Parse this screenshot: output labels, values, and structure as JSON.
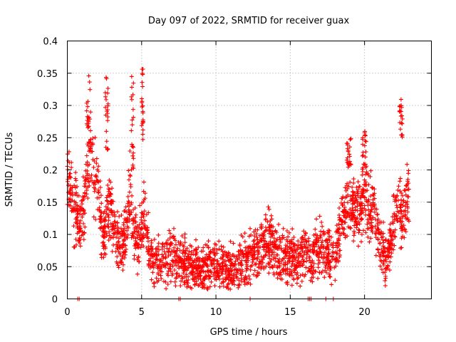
{
  "chart_data": {
    "type": "scatter",
    "title": "Day 097 of 2022, SRMTID for receiver guax",
    "xlabel": "GPS time / hours",
    "ylabel": "SRMTID / TECUs",
    "xlim": [
      0,
      24.5
    ],
    "ylim": [
      0,
      0.4
    ],
    "xticks": [
      0,
      5,
      10,
      15,
      20
    ],
    "xtick_labels": [
      "0",
      "5",
      "10",
      "15",
      "20"
    ],
    "yticks": [
      0,
      0.05,
      0.1,
      0.15,
      0.2,
      0.25,
      0.3,
      0.35,
      0.4
    ],
    "ytick_labels": [
      "0",
      "0.05",
      "0.1",
      "0.15",
      "0.2",
      "0.25",
      "0.3",
      "0.35",
      "0.4"
    ],
    "grid": true,
    "marker": "+",
    "marker_color": "#ff0000",
    "series": [
      {
        "name": "SRMTID",
        "profile_x": [
          0,
          0.25,
          0.5,
          0.75,
          1.0,
          1.25,
          1.5,
          1.75,
          2.0,
          2.25,
          2.5,
          2.75,
          3.0,
          3.25,
          3.5,
          3.75,
          4.0,
          4.25,
          4.5,
          4.75,
          5.0,
          5.25,
          5.5,
          5.75,
          6.0,
          6.5,
          7.0,
          7.5,
          8.0,
          8.5,
          9.0,
          9.5,
          10.0,
          10.5,
          11.0,
          11.5,
          12.0,
          12.5,
          13.0,
          13.5,
          14.0,
          14.5,
          15.0,
          15.5,
          16.0,
          16.5,
          17.0,
          17.5,
          18.0,
          18.5,
          19.0,
          19.5,
          20.0,
          20.5,
          21.0,
          21.25,
          21.5,
          21.75,
          22.0,
          22.25,
          22.5,
          22.75,
          23.0
        ],
        "profile_y": [
          0.19,
          0.17,
          0.14,
          0.12,
          0.12,
          0.17,
          0.23,
          0.2,
          0.18,
          0.12,
          0.1,
          0.15,
          0.13,
          0.09,
          0.09,
          0.08,
          0.11,
          0.17,
          0.1,
          0.08,
          0.11,
          0.14,
          0.07,
          0.06,
          0.06,
          0.06,
          0.07,
          0.06,
          0.05,
          0.05,
          0.045,
          0.05,
          0.05,
          0.045,
          0.045,
          0.05,
          0.06,
          0.07,
          0.08,
          0.09,
          0.07,
          0.065,
          0.065,
          0.06,
          0.07,
          0.07,
          0.08,
          0.07,
          0.07,
          0.13,
          0.14,
          0.15,
          0.15,
          0.14,
          0.09,
          0.07,
          0.06,
          0.09,
          0.12,
          0.14,
          0.12,
          0.15,
          0.15
        ],
        "spread": 0.025,
        "n_points": 2400
      },
      {
        "name": "zero-value points",
        "x": [
          0.7,
          0.8,
          7.5,
          7.6,
          12.3,
          16.2,
          16.3,
          16.4,
          17.4,
          17.9
        ],
        "y": [
          0,
          0,
          0,
          0,
          0,
          0,
          0,
          0,
          0,
          0
        ]
      }
    ],
    "bursts": [
      {
        "x": [
          1.3,
          1.6
        ],
        "y": [
          0.22,
          0.35
        ]
      },
      {
        "x": [
          2.55,
          2.75
        ],
        "y": [
          0.23,
          0.35
        ]
      },
      {
        "x": [
          4.3,
          4.45
        ],
        "y": [
          0.2,
          0.35
        ]
      },
      {
        "x": [
          5.0,
          5.1
        ],
        "y": [
          0.24,
          0.36
        ]
      },
      {
        "x": [
          18.8,
          19.1
        ],
        "y": [
          0.2,
          0.25
        ]
      },
      {
        "x": [
          19.85,
          20.15
        ],
        "y": [
          0.18,
          0.26
        ]
      },
      {
        "x": [
          22.35,
          22.55
        ],
        "y": [
          0.25,
          0.31
        ]
      }
    ]
  }
}
